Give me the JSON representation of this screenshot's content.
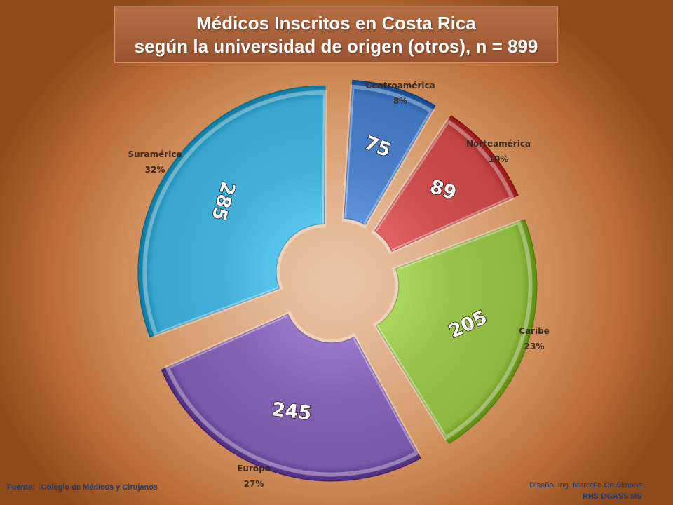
{
  "header": {
    "title_line1": "Médicos Inscritos en Costa Rica",
    "title_line2": "según la universidad de origen (otros),  n =  899"
  },
  "footer": {
    "source_label": "Fuente:",
    "source_value": "Colegio de Médicos y Cirujanos",
    "design_label": "Diseño:",
    "design_value": "Ing. Marcello De Simone",
    "org": "RHS DGASS MS"
  },
  "chart_data": {
    "type": "pie",
    "style": "exploded-doughnut",
    "title": "Médicos Inscritos en Costa Rica según la universidad de origen (otros),  n =  899",
    "total": 899,
    "categories": [
      "Centroamérica",
      "Norteamérica",
      "Caribe",
      "Europa",
      "Suramérica"
    ],
    "values": [
      75,
      89,
      205,
      245,
      285
    ],
    "percent_labels": [
      "8%",
      "10%",
      "23%",
      "27%",
      "32%"
    ],
    "colors": [
      "#4a7fc8",
      "#cc4e4e",
      "#96c24a",
      "#8462b4",
      "#42b0d8"
    ],
    "legend": "none"
  }
}
